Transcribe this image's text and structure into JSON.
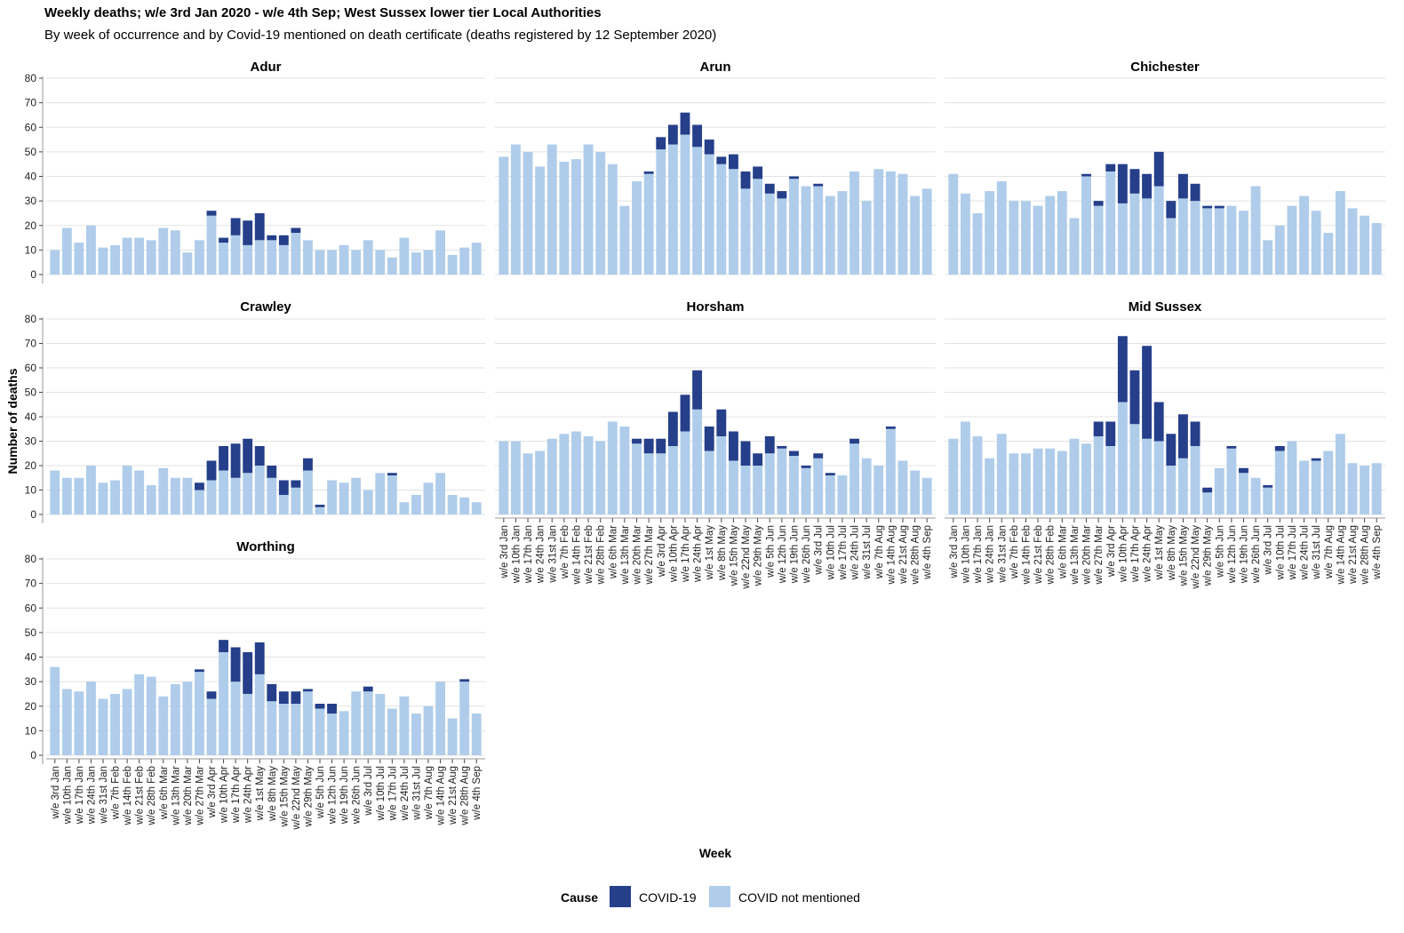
{
  "chart_data": {
    "type": "bar",
    "stacked": true,
    "title": "Weekly deaths; w/e 3rd Jan 2020 - w/e 4th Sep; West Sussex lower tier Local Authorities",
    "subtitle": "By week of occurrence and by Covid-19 mentioned on death certificate (deaths registered by 12 September 2020)",
    "xlabel": "Week",
    "ylabel": "Number of deaths",
    "ylim": [
      0,
      80
    ],
    "yticks": [
      0,
      10,
      20,
      30,
      40,
      50,
      60,
      70,
      80
    ],
    "grid": true,
    "legend": {
      "position": "bottom",
      "title": "Cause",
      "entries": [
        {
          "label": "COVID-19",
          "color": "#253f8a"
        },
        {
          "label": "COVID not mentioned",
          "color": "#afcdea"
        }
      ]
    },
    "categories": [
      "w/e 3rd Jan",
      "w/e 10th Jan",
      "w/e 17th Jan",
      "w/e 24th Jan",
      "w/e 31st Jan",
      "w/e 7th Feb",
      "w/e 14th Feb",
      "w/e 21st Feb",
      "w/e 28th Feb",
      "w/e 6th Mar",
      "w/e 13th Mar",
      "w/e 20th Mar",
      "w/e 27th Mar",
      "w/e 3rd Apr",
      "w/e 10th Apr",
      "w/e 17th Apr",
      "w/e 24th Apr",
      "w/e 1st May",
      "w/e 8th May",
      "w/e 15th May",
      "w/e 22nd May",
      "w/e 29th May",
      "w/e 5th Jun",
      "w/e 12th Jun",
      "w/e 19th Jun",
      "w/e 26th Jun",
      "w/e 3rd Jul",
      "w/e 10th Jul",
      "w/e 17th Jul",
      "w/e 24th Jul",
      "w/e 31st Jul",
      "w/e 7th Aug",
      "w/e 14th Aug",
      "w/e 21st Aug",
      "w/e 28th Aug",
      "w/e 4th Sep"
    ],
    "panels": [
      {
        "name": "Adur",
        "not_mentioned": [
          10,
          19,
          13,
          20,
          11,
          12,
          15,
          15,
          14,
          19,
          18,
          9,
          14,
          24,
          13,
          16,
          12,
          14,
          14,
          12,
          17,
          14,
          10,
          10,
          12,
          10,
          14,
          10,
          7,
          15,
          9,
          10,
          18,
          8,
          11,
          13
        ],
        "covid": [
          0,
          0,
          0,
          0,
          0,
          0,
          0,
          0,
          0,
          0,
          0,
          0,
          0,
          2,
          2,
          7,
          10,
          11,
          2,
          4,
          2,
          0,
          0,
          0,
          0,
          0,
          0,
          0,
          0,
          0,
          0,
          0,
          0,
          0,
          0,
          0
        ]
      },
      {
        "name": "Arun",
        "not_mentioned": [
          48,
          53,
          50,
          44,
          53,
          46,
          47,
          53,
          50,
          45,
          28,
          38,
          41,
          51,
          53,
          57,
          52,
          49,
          45,
          43,
          35,
          39,
          33,
          31,
          39,
          36,
          36,
          32,
          34,
          42,
          30,
          43,
          42,
          41,
          32,
          35
        ],
        "covid": [
          0,
          0,
          0,
          0,
          0,
          0,
          0,
          0,
          0,
          0,
          0,
          0,
          1,
          5,
          8,
          9,
          9,
          6,
          3,
          6,
          7,
          5,
          4,
          3,
          1,
          0,
          1,
          0,
          0,
          0,
          0,
          0,
          0,
          0,
          0,
          0
        ]
      },
      {
        "name": "Chichester",
        "not_mentioned": [
          41,
          33,
          25,
          34,
          38,
          30,
          30,
          28,
          32,
          34,
          23,
          40,
          28,
          42,
          29,
          33,
          31,
          36,
          23,
          31,
          30,
          27,
          27,
          28,
          26,
          36,
          14,
          20,
          28,
          32,
          26,
          17,
          34,
          27,
          24,
          21
        ],
        "covid": [
          0,
          0,
          0,
          0,
          0,
          0,
          0,
          0,
          0,
          0,
          0,
          1,
          2,
          3,
          16,
          10,
          10,
          14,
          7,
          10,
          7,
          1,
          1,
          0,
          0,
          0,
          0,
          0,
          0,
          0,
          0,
          0,
          0,
          0,
          0,
          0
        ]
      },
      {
        "name": "Crawley",
        "not_mentioned": [
          18,
          15,
          15,
          20,
          13,
          14,
          20,
          18,
          12,
          19,
          15,
          15,
          10,
          14,
          18,
          15,
          17,
          20,
          15,
          8,
          11,
          18,
          3,
          14,
          13,
          15,
          10,
          17,
          16,
          5,
          8,
          13,
          17,
          8,
          7,
          5
        ],
        "covid": [
          0,
          0,
          0,
          0,
          0,
          0,
          0,
          0,
          0,
          0,
          0,
          0,
          3,
          8,
          10,
          14,
          14,
          8,
          5,
          6,
          3,
          5,
          1,
          0,
          0,
          0,
          0,
          0,
          1,
          0,
          0,
          0,
          0,
          0,
          0,
          0
        ]
      },
      {
        "name": "Horsham",
        "not_mentioned": [
          30,
          30,
          25,
          26,
          31,
          33,
          34,
          32,
          30,
          38,
          36,
          29,
          25,
          25,
          28,
          34,
          43,
          26,
          32,
          22,
          20,
          20,
          25,
          27,
          24,
          19,
          23,
          16,
          16,
          29,
          23,
          20,
          35,
          22,
          18,
          15
        ],
        "covid": [
          0,
          0,
          0,
          0,
          0,
          0,
          0,
          0,
          0,
          0,
          0,
          2,
          6,
          6,
          14,
          15,
          16,
          10,
          11,
          12,
          10,
          5,
          7,
          1,
          2,
          1,
          2,
          1,
          0,
          2,
          0,
          0,
          1,
          0,
          0,
          0
        ]
      },
      {
        "name": "Mid Sussex",
        "not_mentioned": [
          31,
          38,
          32,
          23,
          33,
          25,
          25,
          27,
          27,
          26,
          31,
          29,
          32,
          28,
          46,
          37,
          31,
          30,
          20,
          23,
          28,
          9,
          19,
          27,
          17,
          15,
          11,
          26,
          30,
          22,
          22,
          26,
          33,
          21,
          20,
          21
        ],
        "covid": [
          0,
          0,
          0,
          0,
          0,
          0,
          0,
          0,
          0,
          0,
          0,
          0,
          6,
          10,
          27,
          22,
          38,
          16,
          13,
          18,
          10,
          2,
          0,
          1,
          2,
          0,
          1,
          2,
          0,
          0,
          1,
          0,
          0,
          0,
          0,
          0
        ]
      },
      {
        "name": "Worthing",
        "not_mentioned": [
          36,
          27,
          26,
          30,
          23,
          25,
          27,
          33,
          32,
          24,
          29,
          30,
          34,
          23,
          42,
          30,
          25,
          33,
          22,
          21,
          21,
          26,
          19,
          17,
          18,
          26,
          26,
          25,
          19,
          24,
          17,
          20,
          30,
          15,
          30,
          17
        ],
        "covid": [
          0,
          0,
          0,
          0,
          0,
          0,
          0,
          0,
          0,
          0,
          0,
          0,
          1,
          3,
          5,
          14,
          17,
          13,
          7,
          5,
          5,
          1,
          2,
          4,
          0,
          0,
          2,
          0,
          0,
          0,
          0,
          0,
          0,
          0,
          1,
          0
        ]
      }
    ]
  }
}
